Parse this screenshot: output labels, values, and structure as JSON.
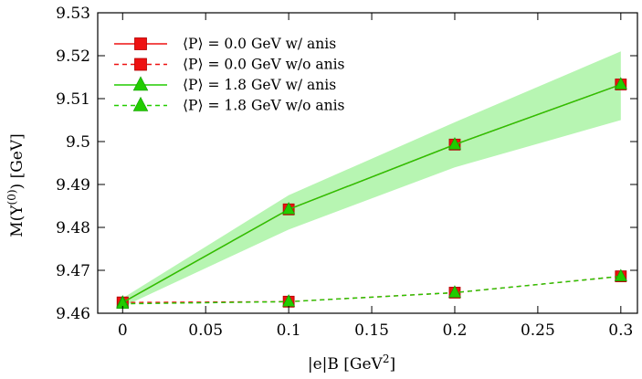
{
  "chart_data": {
    "type": "line",
    "title": "",
    "xlabel": "|e|B [GeV",
    "xlabel_sup": "2",
    "xlabel_end": "]",
    "ylabel": "M(Υ",
    "ylabel_sup": "(0)",
    "ylabel_end": ") [GeV]",
    "xlim": [
      -0.015,
      0.31
    ],
    "ylim": [
      9.46,
      9.53
    ],
    "xticks": [
      0,
      0.05,
      0.1,
      0.15,
      0.2,
      0.25,
      0.3
    ],
    "xtick_labels": [
      "0",
      "0.05",
      "0.1",
      "0.15",
      "0.2",
      "0.25",
      "0.3"
    ],
    "yticks": [
      9.46,
      9.47,
      9.48,
      9.49,
      9.5,
      9.51,
      9.52,
      9.53
    ],
    "ytick_labels": [
      "9.46",
      "9.47",
      "9.48",
      "9.49",
      "9.5",
      "9.51",
      "9.52",
      "9.53"
    ],
    "grid": false,
    "legend_position": "top-left",
    "x": [
      0,
      0.1,
      0.2,
      0.3
    ],
    "band": {
      "color": "#b7f5b2",
      "lower": [
        9.4615,
        9.4795,
        9.494,
        9.505
      ],
      "upper": [
        9.4635,
        9.4875,
        9.5045,
        9.521
      ]
    },
    "series": [
      {
        "name": "⟨P⟩ = 0.0 GeV w/ anis",
        "values": [
          9.4625,
          9.4842,
          9.4993,
          9.5133
        ],
        "color": "#ee1111",
        "marker": "square",
        "line": "solid"
      },
      {
        "name": "⟨P⟩ = 0.0 GeV w/o anis",
        "values": [
          9.4625,
          9.4627,
          9.4648,
          9.4686
        ],
        "color": "#ee1111",
        "marker": "square",
        "line": "dashed"
      },
      {
        "name": "⟨P⟩ = 1.8 GeV w/ anis",
        "values": [
          9.4625,
          9.4842,
          9.4993,
          9.5133
        ],
        "color": "#22cc00",
        "marker": "triangle",
        "line": "solid"
      },
      {
        "name": "⟨P⟩ = 1.8 GeV w/o anis",
        "values": [
          9.4622,
          9.4627,
          9.4648,
          9.4686
        ],
        "color": "#22cc00",
        "marker": "triangle",
        "line": "dashed"
      }
    ]
  }
}
